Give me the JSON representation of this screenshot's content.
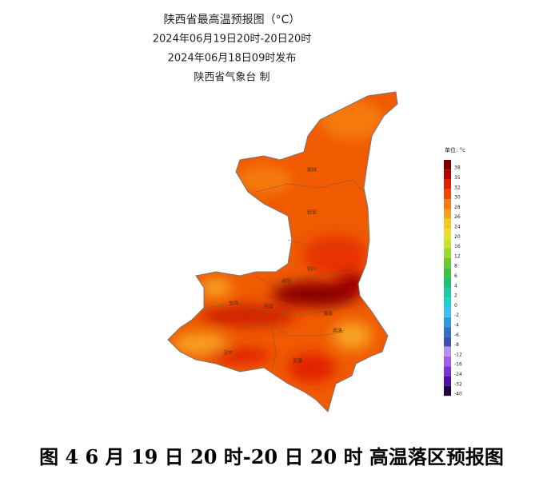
{
  "header": {
    "title": "陕西省最高温预报图（°C）",
    "period": "2024年06月19日20时-20日20时",
    "issued": "2024年06月18日09时发布",
    "producer": "陕西省气象台 制"
  },
  "map": {
    "labels": [
      "榆林",
      "延安",
      "铜川",
      "咸阳",
      "宝鸡",
      "西安",
      "渭南",
      "商洛",
      "汉中",
      "安康"
    ]
  },
  "legend": {
    "unit": "单位: °c",
    "levels": [
      {
        "value": 38,
        "color": "#7a0000"
      },
      {
        "value": 35,
        "color": "#b80000"
      },
      {
        "value": 32,
        "color": "#e02000"
      },
      {
        "value": 30,
        "color": "#f04a00"
      },
      {
        "value": 28,
        "color": "#f57a10"
      },
      {
        "value": 26,
        "color": "#f7a020"
      },
      {
        "value": 24,
        "color": "#f5c820"
      },
      {
        "value": 20,
        "color": "#e8e030"
      },
      {
        "value": 16,
        "color": "#c8e030"
      },
      {
        "value": 12,
        "color": "#9cd830"
      },
      {
        "value": 8,
        "color": "#6cc830"
      },
      {
        "value": 6,
        "color": "#40c040"
      },
      {
        "value": 4,
        "color": "#20c070"
      },
      {
        "value": 2,
        "color": "#20c8a0"
      },
      {
        "value": 0,
        "color": "#20d0d0"
      },
      {
        "value": -2,
        "color": "#40c0f0"
      },
      {
        "value": -4,
        "color": "#3098e0"
      },
      {
        "value": -6,
        "color": "#3070c8"
      },
      {
        "value": -8,
        "color": "#4050b0"
      },
      {
        "value": -12,
        "color": "#b890f0"
      },
      {
        "value": -16,
        "color": "#a060e8"
      },
      {
        "value": -24,
        "color": "#8030d8"
      },
      {
        "value": -32,
        "color": "#5010a0"
      },
      {
        "value": -40,
        "color": "#200040"
      }
    ]
  },
  "caption": "图 4 6 月 19 日 20 时-20 日 20 时 高温落区预报图"
}
